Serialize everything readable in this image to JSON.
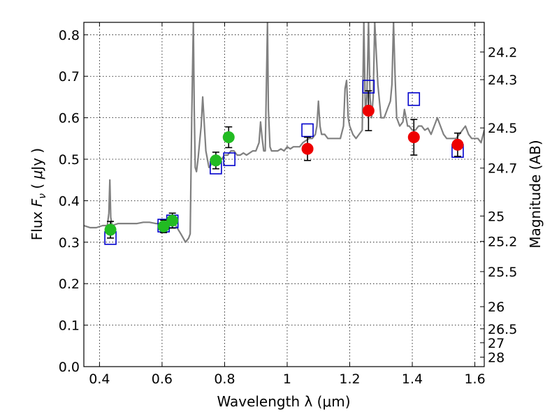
{
  "chart_data": {
    "type": "scatter",
    "xlabel": "Wavelength  λ (μm)",
    "ylabel_left": "Flux  F_ν  ( μJy )",
    "ylabel_left_parts": {
      "prefix": "Flux  ",
      "symbol": "F",
      "subscript": "ν",
      "mid": "  ( ",
      "greek": "μ",
      "suffix": "Jy )"
    },
    "ylabel_right": "Magnitude (AB)",
    "xlim": [
      0.35,
      1.63
    ],
    "ylim": [
      0.0,
      0.83
    ],
    "grid": true,
    "x_ticks": [
      0.4,
      0.6,
      0.8,
      1.0,
      1.2,
      1.4,
      1.6
    ],
    "x_tick_labels": [
      "0.4",
      "0.6",
      "0.8",
      "1",
      "1.2",
      "1.4",
      "1.6"
    ],
    "y_ticks": [
      0.0,
      0.1,
      0.2,
      0.3,
      0.4,
      0.5,
      0.6,
      0.7,
      0.8
    ],
    "y_tick_labels": [
      "0.0",
      "0.1",
      "0.2",
      "0.3",
      "0.4",
      "0.5",
      "0.6",
      "0.7",
      "0.8"
    ],
    "right_ticks": [
      {
        "mag": 24.2,
        "label": "24.2"
      },
      {
        "mag": 24.3,
        "label": "24.3"
      },
      {
        "mag": 24.5,
        "label": "24.5"
      },
      {
        "mag": 24.7,
        "label": "24.7"
      },
      {
        "mag": 25.0,
        "label": "25"
      },
      {
        "mag": 25.2,
        "label": "25.2"
      },
      {
        "mag": 25.5,
        "label": "25.5"
      },
      {
        "mag": 26.0,
        "label": "26"
      },
      {
        "mag": 26.5,
        "label": "26.5"
      },
      {
        "mag": 27.0,
        "label": "27"
      },
      {
        "mag": 28.0,
        "label": "28"
      }
    ],
    "colors": {
      "model": "#808080",
      "model_photometry": "#0000cc",
      "optical_points": "#22bb22",
      "nir_points": "#ee0000",
      "errorbar": "#000000"
    },
    "series": [
      {
        "type": "line",
        "x": [
          0.35,
          0.37,
          0.39,
          0.41,
          0.425,
          0.43,
          0.433,
          0.436,
          0.44,
          0.46,
          0.48,
          0.5,
          0.52,
          0.54,
          0.56,
          0.58,
          0.6,
          0.62,
          0.64,
          0.66,
          0.675,
          0.685,
          0.69,
          0.695,
          0.7,
          0.703,
          0.706,
          0.71,
          0.715,
          0.72,
          0.725,
          0.73,
          0.74,
          0.75,
          0.76,
          0.77,
          0.78,
          0.79,
          0.8,
          0.81,
          0.82,
          0.83,
          0.84,
          0.85,
          0.86,
          0.87,
          0.88,
          0.89,
          0.9,
          0.91,
          0.915,
          0.92,
          0.925,
          0.93,
          0.937,
          0.94,
          0.945,
          0.95,
          0.96,
          0.97,
          0.98,
          0.99,
          1.0,
          1.01,
          1.02,
          1.03,
          1.04,
          1.05,
          1.06,
          1.07,
          1.08,
          1.09,
          1.095,
          1.1,
          1.105,
          1.11,
          1.12,
          1.13,
          1.14,
          1.15,
          1.16,
          1.17,
          1.18,
          1.185,
          1.19,
          1.195,
          1.2,
          1.21,
          1.22,
          1.23,
          1.24,
          1.245,
          1.25,
          1.255,
          1.26,
          1.265,
          1.27,
          1.275,
          1.28,
          1.29,
          1.3,
          1.31,
          1.32,
          1.33,
          1.335,
          1.34,
          1.345,
          1.35,
          1.36,
          1.37,
          1.375,
          1.38,
          1.385,
          1.39,
          1.4,
          1.41,
          1.42,
          1.43,
          1.44,
          1.45,
          1.46,
          1.47,
          1.48,
          1.49,
          1.5,
          1.51,
          1.52,
          1.53,
          1.54,
          1.55,
          1.56,
          1.57,
          1.58,
          1.59,
          1.6,
          1.61,
          1.62,
          1.63
        ],
        "y": [
          0.34,
          0.335,
          0.335,
          0.34,
          0.34,
          0.37,
          0.45,
          0.36,
          0.34,
          0.345,
          0.345,
          0.345,
          0.345,
          0.348,
          0.348,
          0.345,
          0.345,
          0.345,
          0.345,
          0.32,
          0.3,
          0.31,
          0.32,
          0.6,
          0.83,
          0.62,
          0.48,
          0.47,
          0.5,
          0.54,
          0.58,
          0.65,
          0.52,
          0.48,
          0.49,
          0.5,
          0.5,
          0.5,
          0.51,
          0.51,
          0.52,
          0.52,
          0.51,
          0.51,
          0.515,
          0.51,
          0.515,
          0.52,
          0.52,
          0.54,
          0.59,
          0.55,
          0.52,
          0.52,
          0.83,
          0.62,
          0.53,
          0.52,
          0.52,
          0.52,
          0.525,
          0.52,
          0.53,
          0.525,
          0.53,
          0.53,
          0.53,
          0.54,
          0.545,
          0.55,
          0.55,
          0.56,
          0.58,
          0.64,
          0.58,
          0.56,
          0.56,
          0.55,
          0.55,
          0.55,
          0.55,
          0.55,
          0.58,
          0.67,
          0.69,
          0.6,
          0.58,
          0.56,
          0.55,
          0.56,
          0.57,
          0.83,
          0.61,
          0.65,
          0.83,
          0.65,
          0.6,
          0.65,
          0.83,
          0.68,
          0.6,
          0.6,
          0.62,
          0.64,
          0.68,
          0.83,
          0.7,
          0.6,
          0.58,
          0.59,
          0.62,
          0.6,
          0.58,
          0.58,
          0.57,
          0.57,
          0.58,
          0.58,
          0.57,
          0.575,
          0.56,
          0.58,
          0.6,
          0.58,
          0.56,
          0.55,
          0.55,
          0.55,
          0.55,
          0.56,
          0.57,
          0.58,
          0.56,
          0.55,
          0.55,
          0.55,
          0.54,
          0.57
        ]
      },
      {
        "type": "scatter",
        "marker": "open-square",
        "x": [
          0.435,
          0.605,
          0.633,
          0.772,
          0.815,
          1.065,
          1.26,
          1.405,
          1.545
        ],
        "y": [
          0.31,
          0.34,
          0.35,
          0.48,
          0.5,
          0.57,
          0.675,
          0.645,
          0.52
        ]
      },
      {
        "type": "scatter",
        "marker": "filled-circle",
        "x": [
          0.435,
          0.605,
          0.633,
          0.772,
          0.813
        ],
        "y": [
          0.33,
          0.338,
          0.352,
          0.497,
          0.553
        ],
        "err": [
          0.02,
          0.015,
          0.018,
          0.02,
          0.025
        ]
      },
      {
        "type": "scatter",
        "marker": "filled-circle",
        "x": [
          1.065,
          1.26,
          1.405,
          1.545
        ],
        "y": [
          0.525,
          0.617,
          0.553,
          0.535
        ],
        "err": [
          0.028,
          0.048,
          0.043,
          0.028
        ]
      }
    ]
  }
}
